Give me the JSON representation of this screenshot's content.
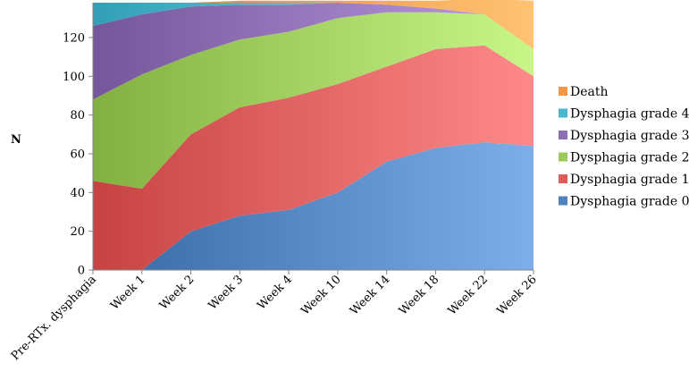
{
  "chart_data": {
    "type": "area",
    "stacked": true,
    "categories": [
      "Pre-RTx. dysphagia",
      "Week 1",
      "Week 2",
      "Week 3",
      "Week 4",
      "Week 10",
      "Week 14",
      "Week 18",
      "Week 22",
      "Week 26"
    ],
    "series": [
      {
        "name": "Dysphagia grade 0",
        "values": [
          0,
          0,
          20,
          28,
          31,
          40,
          56,
          63,
          66,
          64
        ],
        "color": "#4f81bd"
      },
      {
        "name": "Dysphagia grade 1",
        "values": [
          46,
          42,
          50,
          56,
          58,
          56,
          49,
          51,
          50,
          36
        ],
        "color": "#e05c5c"
      },
      {
        "name": "Dysphagia grade 2",
        "values": [
          42,
          59,
          41,
          35,
          34,
          34,
          28,
          19,
          16,
          14
        ],
        "color": "#9bc95a"
      },
      {
        "name": "Dysphagia grade 3",
        "values": [
          38,
          31,
          25,
          18,
          14,
          8,
          4,
          2,
          0,
          0
        ],
        "color": "#8e6fb3"
      },
      {
        "name": "Dysphagia grade 4",
        "values": [
          12,
          6,
          2,
          1,
          1,
          0,
          0,
          0,
          0,
          0
        ],
        "color": "#4bb8d0"
      },
      {
        "name": "Death",
        "values": [
          0,
          0,
          0,
          1,
          1,
          1,
          2,
          4,
          8,
          25
        ],
        "color": "#f79646"
      }
    ],
    "ylabel": "N",
    "xlabel": "",
    "ylim": [
      0,
      138
    ],
    "yticks": [
      0,
      20,
      40,
      60,
      80,
      100,
      120
    ],
    "grid": false,
    "legend": "right"
  }
}
